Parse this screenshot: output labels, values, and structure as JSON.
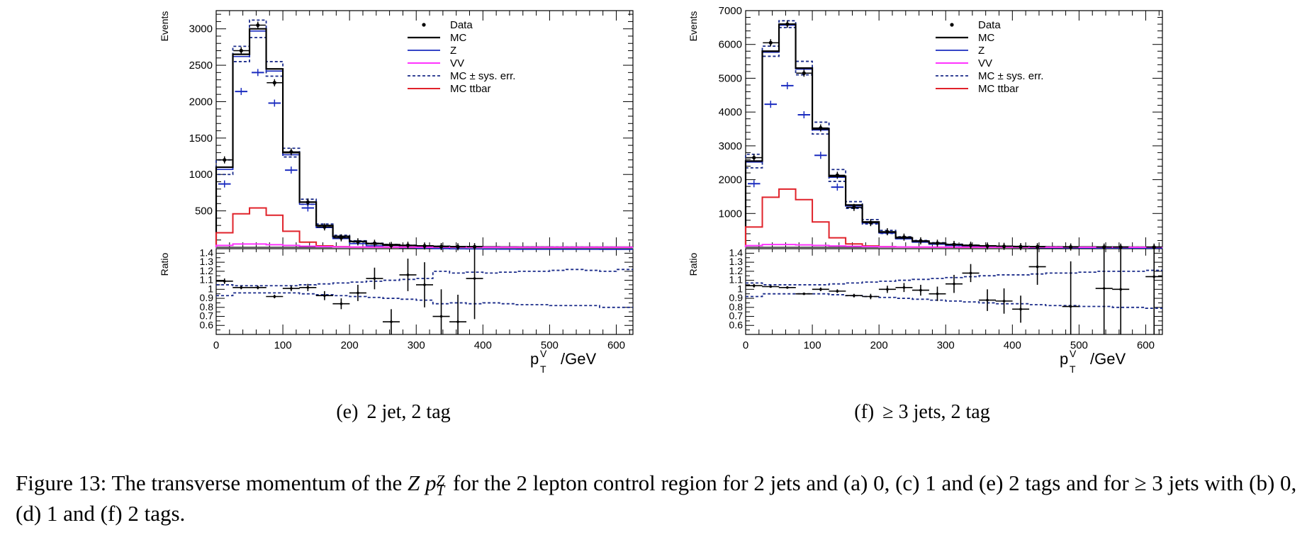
{
  "chart_data": [
    {
      "type": "histogram-with-ratio",
      "panel": "e",
      "subcaption_label": "(e)",
      "subcaption_text": "2 jet, 2 tag",
      "ylabel": "Events",
      "ratio_ylabel": "Ratio",
      "xlabel_main": "p",
      "xlabel_sup": "V",
      "xlabel_sub": "T",
      "xlabel_unit": "/GeV",
      "xlim": [
        0,
        625
      ],
      "ylim": [
        0,
        3250
      ],
      "ratio_ylim": [
        0.5,
        1.45
      ],
      "x_ticks": [
        "0",
        "100",
        "200",
        "300",
        "400",
        "500",
        "600"
      ],
      "y_ticks": [
        "500",
        "1000",
        "1500",
        "2000",
        "2500",
        "3000"
      ],
      "ratio_ticks": [
        "0.6",
        "0.7",
        "0.8",
        "0.9",
        "1",
        "1.1",
        "1.2",
        "1.3",
        "1.4"
      ],
      "legend": [
        "Data",
        "MC",
        "Z",
        "VV",
        "MC ± sys. err.",
        "MC ttbar"
      ],
      "bin_edges": [
        0,
        25,
        50,
        75,
        100,
        125,
        150,
        175,
        200,
        225,
        250,
        275,
        300,
        325,
        350,
        375,
        400,
        425,
        450,
        475,
        500,
        525,
        550,
        575,
        600,
        625
      ],
      "mc": [
        1100,
        2650,
        3000,
        2450,
        1300,
        620,
        300,
        150,
        80,
        50,
        35,
        25,
        18,
        12,
        9,
        7,
        5,
        4,
        3,
        3,
        2,
        2,
        2,
        1,
        1
      ],
      "mc_up": [
        1200,
        2760,
        3120,
        2550,
        1360,
        660,
        320,
        165,
        90,
        56,
        40,
        28,
        20,
        14,
        11,
        8,
        6,
        5,
        4,
        3,
        3,
        2,
        2,
        2,
        1
      ],
      "mc_down": [
        1000,
        2550,
        2880,
        2350,
        1240,
        590,
        280,
        140,
        72,
        45,
        31,
        22,
        15,
        10,
        8,
        6,
        4,
        3,
        3,
        2,
        2,
        2,
        1,
        1,
        1
      ],
      "z": [
        870,
        2140,
        2400,
        1980,
        1060,
        540,
        270,
        135,
        70,
        43,
        30,
        22,
        16,
        11,
        8,
        6,
        5,
        4,
        3,
        2,
        2,
        2,
        1,
        1,
        1
      ],
      "vv": [
        25,
        45,
        45,
        35,
        25,
        15,
        10,
        6,
        4,
        3,
        2,
        2,
        1,
        1,
        1,
        1,
        1,
        1,
        1,
        1,
        1,
        1,
        1,
        1,
        1
      ],
      "ttbar": [
        200,
        460,
        540,
        440,
        220,
        70,
        20,
        8,
        3,
        2,
        1,
        1,
        1,
        0,
        0,
        0,
        0,
        0,
        0,
        0,
        0,
        0,
        0,
        0,
        0
      ],
      "data_x": [
        12.5,
        37.5,
        62.5,
        87.5,
        112.5,
        137.5,
        162.5,
        187.5,
        212.5,
        237.5,
        262.5,
        287.5,
        312.5,
        337.5,
        362.5,
        387.5
      ],
      "data_y": [
        1200,
        2700,
        3050,
        2260,
        1310,
        620,
        280,
        130,
        75,
        55,
        25,
        28,
        18,
        9,
        6,
        8
      ],
      "ratio_x": [
        12.5,
        37.5,
        62.5,
        87.5,
        112.5,
        137.5,
        162.5,
        187.5,
        212.5,
        237.5,
        262.5,
        287.5,
        312.5,
        337.5,
        362.5,
        387.5
      ],
      "ratio_y": [
        1.09,
        1.02,
        1.02,
        0.92,
        1.01,
        1.02,
        0.93,
        0.84,
        0.96,
        1.12,
        0.64,
        1.16,
        1.05,
        0.7,
        0.64,
        1.12
      ],
      "ratio_err": [
        0.03,
        0.02,
        0.02,
        0.02,
        0.03,
        0.04,
        0.05,
        0.06,
        0.09,
        0.12,
        0.14,
        0.18,
        0.25,
        0.3,
        0.3,
        0.45
      ],
      "sys_up": [
        1.05,
        1.04,
        1.04,
        1.04,
        1.04,
        1.05,
        1.06,
        1.07,
        1.08,
        1.09,
        1.1,
        1.11,
        1.12,
        1.2,
        1.18,
        1.19,
        1.18,
        1.19,
        1.2,
        1.2,
        1.21,
        1.22,
        1.21,
        1.2,
        1.22
      ],
      "sys_down": [
        0.93,
        0.96,
        0.96,
        0.96,
        0.96,
        0.95,
        0.94,
        0.93,
        0.92,
        0.91,
        0.9,
        0.89,
        0.88,
        0.84,
        0.85,
        0.84,
        0.85,
        0.84,
        0.83,
        0.83,
        0.82,
        0.82,
        0.82,
        0.8,
        0.8
      ]
    },
    {
      "type": "histogram-with-ratio",
      "panel": "f",
      "subcaption_label": "(f)",
      "subcaption_text": "≥ 3 jets, 2 tag",
      "ylabel": "Events",
      "ratio_ylabel": "Ratio",
      "xlabel_main": "p",
      "xlabel_sup": "V",
      "xlabel_sub": "T",
      "xlabel_unit": "/GeV",
      "xlim": [
        0,
        625
      ],
      "ylim": [
        0,
        7000
      ],
      "ratio_ylim": [
        0.5,
        1.45
      ],
      "x_ticks": [
        "0",
        "100",
        "200",
        "300",
        "400",
        "500",
        "600"
      ],
      "y_ticks": [
        "1000",
        "2000",
        "3000",
        "4000",
        "5000",
        "6000",
        "7000"
      ],
      "ratio_ticks": [
        "0.6",
        "0.7",
        "0.8",
        "0.9",
        "1",
        "1.1",
        "1.2",
        "1.3",
        "1.4"
      ],
      "legend": [
        "Data",
        "MC",
        "Z",
        "VV",
        "MC ± sys. err.",
        "MC ttbar"
      ],
      "bin_edges": [
        0,
        25,
        50,
        75,
        100,
        125,
        150,
        175,
        200,
        225,
        250,
        275,
        300,
        325,
        350,
        375,
        400,
        425,
        450,
        475,
        500,
        525,
        550,
        575,
        600,
        625
      ],
      "mc": [
        2550,
        5800,
        6600,
        5300,
        3500,
        2100,
        1250,
        750,
        450,
        280,
        180,
        120,
        80,
        55,
        40,
        30,
        22,
        16,
        12,
        10,
        8,
        6,
        5,
        4,
        3
      ],
      "mc_up": [
        2750,
        5950,
        6700,
        5500,
        3700,
        2300,
        1350,
        820,
        500,
        310,
        200,
        135,
        90,
        62,
        45,
        34,
        25,
        18,
        14,
        11,
        9,
        7,
        6,
        5,
        4
      ],
      "mc_down": [
        2350,
        5650,
        6500,
        5100,
        3350,
        1950,
        1150,
        690,
        410,
        255,
        165,
        108,
        72,
        50,
        36,
        27,
        20,
        14,
        11,
        9,
        7,
        5,
        4,
        3,
        3
      ],
      "z": [
        1880,
        4230,
        4780,
        3920,
        2720,
        1780,
        1120,
        700,
        430,
        270,
        175,
        115,
        78,
        54,
        39,
        29,
        21,
        15,
        11,
        9,
        7,
        6,
        5,
        4,
        3
      ],
      "vv": [
        50,
        80,
        80,
        70,
        55,
        40,
        30,
        22,
        15,
        10,
        8,
        6,
        5,
        4,
        3,
        3,
        2,
        2,
        2,
        1,
        1,
        1,
        1,
        1,
        1
      ],
      "ttbar": [
        600,
        1480,
        1720,
        1410,
        750,
        280,
        100,
        40,
        18,
        8,
        4,
        2,
        1,
        1,
        0,
        0,
        0,
        0,
        0,
        0,
        0,
        0,
        0,
        0,
        0
      ],
      "data_x": [
        12.5,
        37.5,
        62.5,
        87.5,
        112.5,
        137.5,
        162.5,
        187.5,
        212.5,
        237.5,
        262.5,
        287.5,
        312.5,
        337.5,
        362.5,
        387.5,
        412.5,
        437.5,
        487.5,
        537.5,
        562.5,
        612.5
      ],
      "data_y": [
        2650,
        6050,
        6600,
        5150,
        3530,
        2130,
        1180,
        730,
        460,
        300,
        190,
        120,
        85,
        60,
        38,
        28,
        18,
        15,
        8,
        5,
        4,
        4
      ],
      "ratio_x": [
        12.5,
        37.5,
        62.5,
        87.5,
        112.5,
        137.5,
        162.5,
        187.5,
        212.5,
        237.5,
        262.5,
        287.5,
        312.5,
        337.5,
        362.5,
        387.5,
        412.5,
        437.5,
        487.5,
        537.5,
        562.5,
        612.5
      ],
      "ratio_y": [
        1.04,
        1.03,
        1.02,
        0.95,
        1.0,
        0.98,
        0.93,
        0.92,
        1.0,
        1.02,
        0.99,
        0.95,
        1.06,
        1.18,
        0.88,
        0.87,
        0.78,
        1.25,
        0.81,
        1.01,
        1.0,
        1.14
      ],
      "ratio_err": [
        0.02,
        0.01,
        0.01,
        0.01,
        0.02,
        0.02,
        0.02,
        0.03,
        0.04,
        0.05,
        0.06,
        0.08,
        0.1,
        0.1,
        0.12,
        0.14,
        0.15,
        0.2,
        0.5,
        0.8,
        0.8,
        0.8
      ],
      "sys_up": [
        1.07,
        1.05,
        1.05,
        1.05,
        1.05,
        1.06,
        1.07,
        1.08,
        1.09,
        1.1,
        1.11,
        1.12,
        1.13,
        1.14,
        1.15,
        1.16,
        1.16,
        1.17,
        1.18,
        1.18,
        1.19,
        1.2,
        1.2,
        1.2,
        1.21
      ],
      "sys_down": [
        0.92,
        0.95,
        0.95,
        0.95,
        0.95,
        0.94,
        0.93,
        0.92,
        0.91,
        0.9,
        0.89,
        0.88,
        0.87,
        0.86,
        0.85,
        0.84,
        0.84,
        0.83,
        0.82,
        0.82,
        0.81,
        0.81,
        0.8,
        0.8,
        0.79
      ]
    }
  ],
  "caption": {
    "prefix": "Figure 13: The transverse momentum of the",
    "z_symbol": "Z",
    "p_symbol": "p",
    "p_sup": "Z",
    "p_sub": "T",
    "suffix": "for the 2 lepton control region for 2 jets and (a) 0, (c) 1 and (e) 2 tags and for ≥ 3 jets with (b) 0, (d) 1 and (f) 2 tags."
  },
  "colors": {
    "data": "#000000",
    "mc": "#000000",
    "z": "#1a2bbf",
    "vv": "#ff33ff",
    "sys": "#1a2b8a",
    "ttbar": "#e0222a",
    "frame": "#000000"
  }
}
